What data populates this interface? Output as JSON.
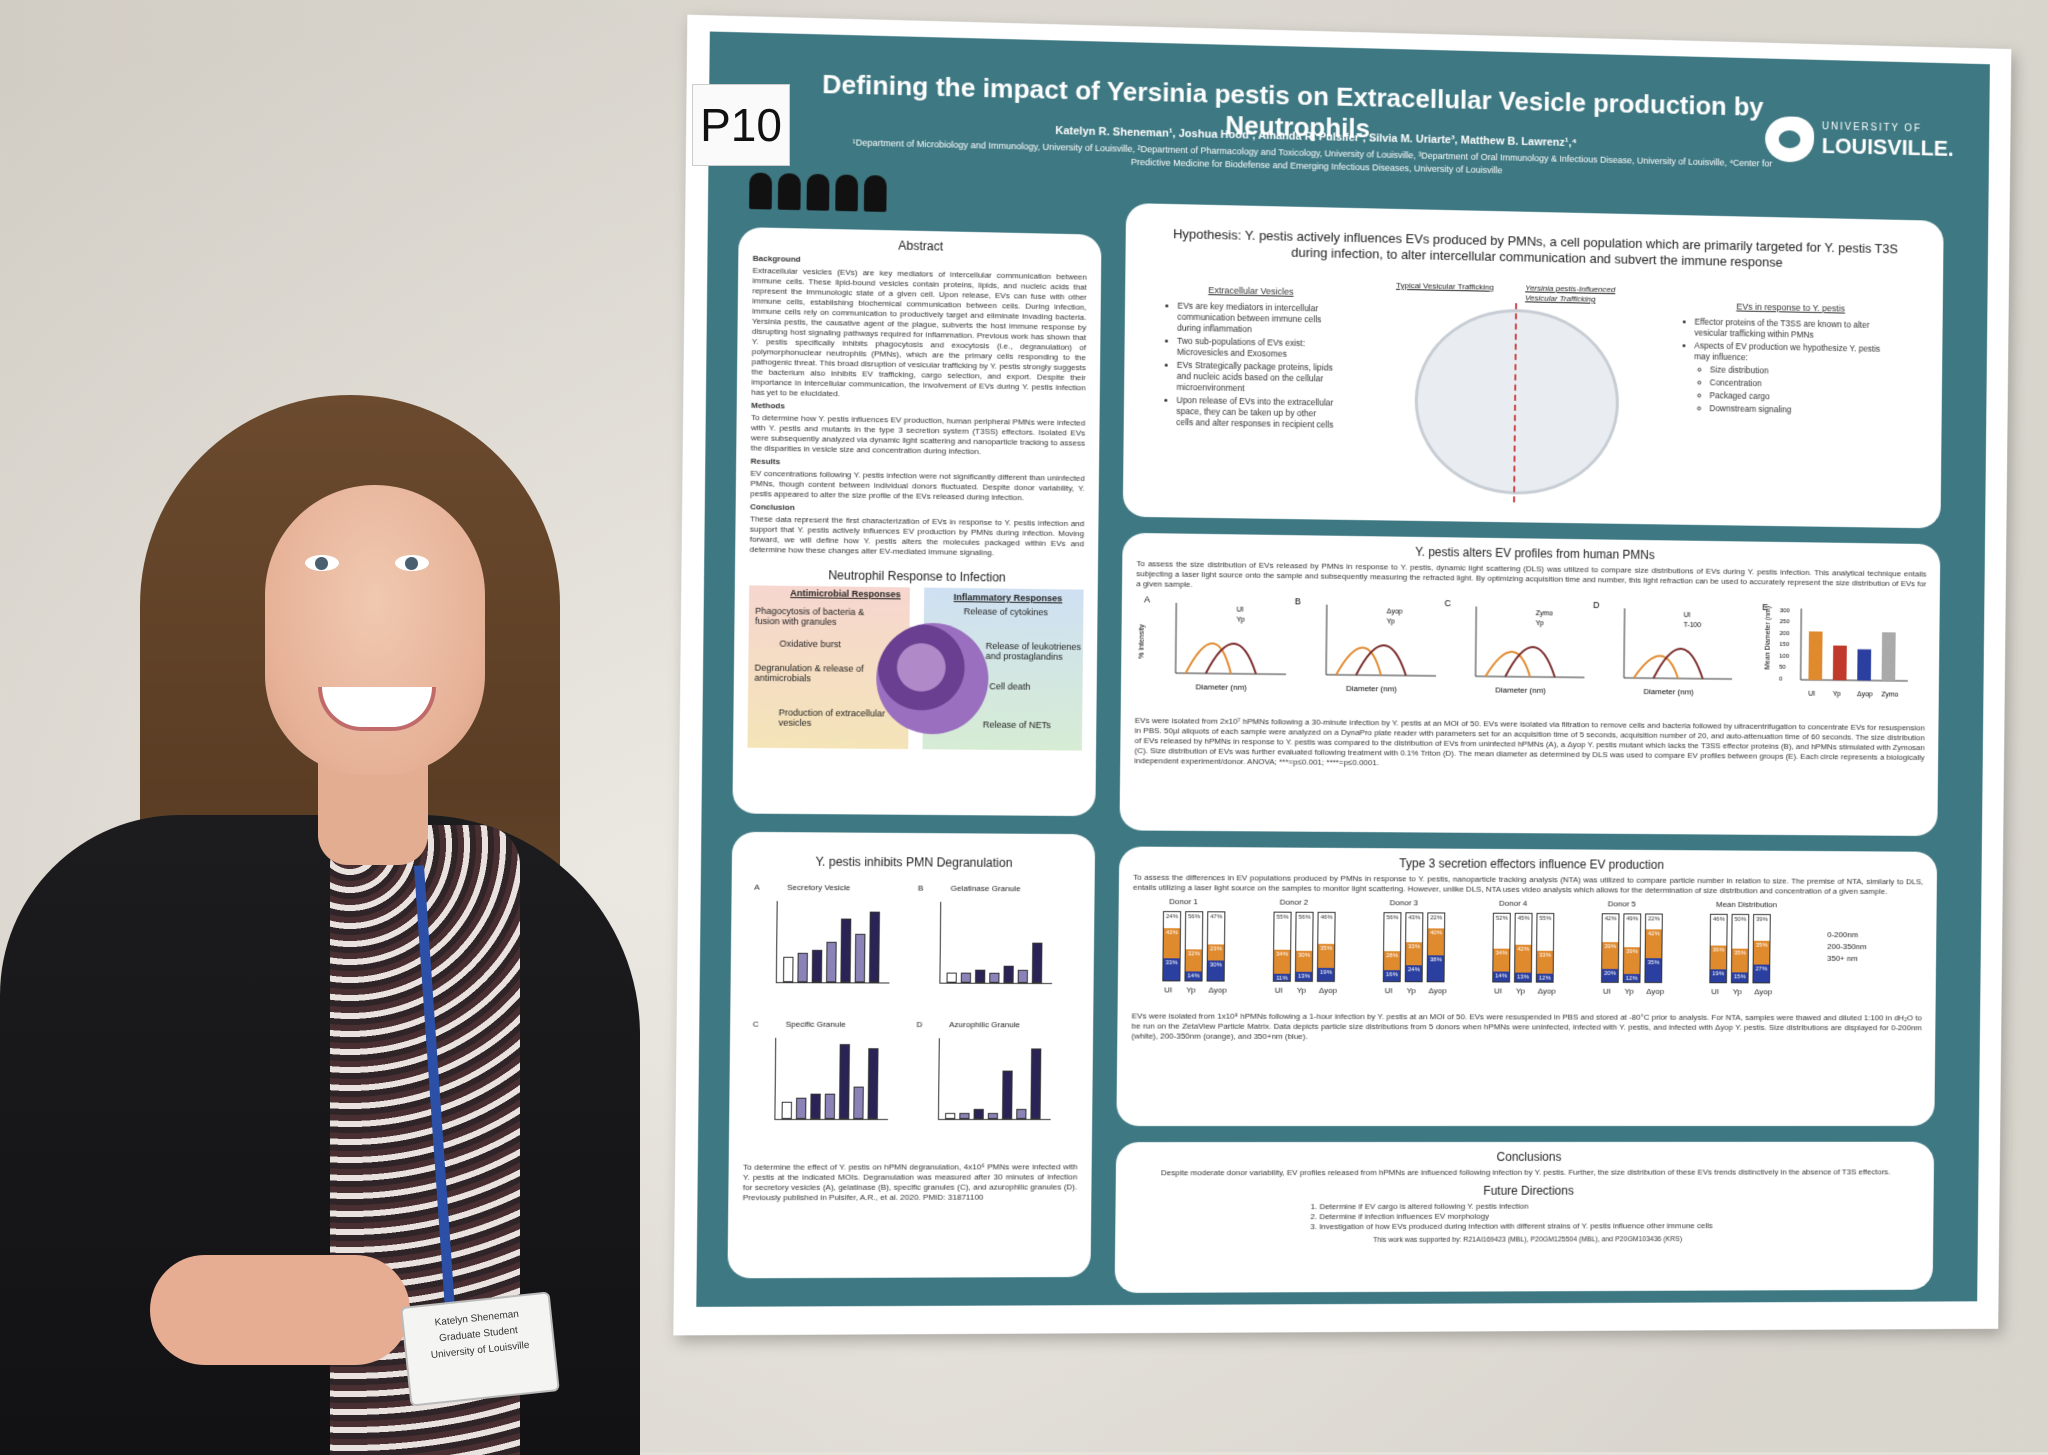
{
  "sign": "P10",
  "poster": {
    "title": "Defining the impact of Yersinia pestis on Extracellular Vesicle production by Neutrophils",
    "authors": "Katelyn R. Sheneman¹, Joshua Hood², Amanda R. Pulsifer¹, Silvia M. Uriarte³, Matthew B. Lawrenz¹,⁴",
    "affiliations": "¹Department of Microbiology and Immunology, University of Louisville, ²Department of Pharmacology and Toxicology, University of Louisville, ³Department of Oral Immunology & Infectious Disease, University of Louisville, ⁴Center for Predictive Medicine for Biodefense and Emerging Infectious Diseases, University of Louisville",
    "logo_top": "UNIVERSITY OF",
    "logo_bottom": "LOUISVILLE.",
    "abstract": {
      "title": "Abstract",
      "background_head": "Background",
      "background": "Extracellular vesicles (EVs) are key mediators of intercellular communication between immune cells. These lipid-bound vesicles contain proteins, lipids, and nucleic acids that represent the immunologic state of a given cell. Upon release, EVs can fuse with other immune cells, establishing biochemical communication between cells. During infection, immune cells rely on communication to productively target and eliminate invading bacteria. Yersinia pestis, the causative agent of the plague, subverts the host immune response by disrupting host signaling pathways required for inflammation. Previous work has shown that Y. pestis specifically inhibits phagocytosis and exocytosis (i.e., degranulation) of polymorphonuclear neutrophils (PMNs), which are the primary cells responding to the pathogenic threat. This broad disruption of vesicular trafficking by Y. pestis strongly suggests the bacterium also inhibits EV trafficking, cargo selection, and export. Despite their importance in intercellular communication, the involvement of EVs during Y. pestis infection has yet to be elucidated.",
      "methods_head": "Methods",
      "methods": "To determine how Y. pestis influences EV production, human peripheral PMNs were infected with Y. pestis and mutants in the type 3 secretion system (T3SS) effectors. Isolated EVs were subsequently analyzed via dynamic light scattering and nanoparticle tracking to assess the disparities in vesicle size and concentration during infection.",
      "results_head": "Results",
      "results": "EV concentrations following Y. pestis infection were not significantly different than uninfected PMNs, though content between individual donors fluctuated. Despite donor variability, Y. pestis appeared to alter the size profile of the EVs released during infection.",
      "conclusion_head": "Conclusion",
      "conclusion": "These data represent the first characterization of EVs in response to Y. pestis infection and support that Y. pestis actively influences EV production by PMNs during infection. Moving forward, we will define how Y. pestis alters the molecules packaged within EVs and determine how these changes alter EV-mediated immune signaling."
    },
    "neutrophil": {
      "title": "Neutrophil Response to Infection",
      "antimicrobial_head": "Antimicrobial Responses",
      "inflammatory_head": "Inflammatory Responses",
      "left_items": [
        "Phagocytosis of bacteria & fusion with granules",
        "Oxidative burst",
        "Degranulation & release of antimicrobials",
        "Production of extracellular vesicles"
      ],
      "right_items": [
        "Release of cytokines",
        "Release of leukotrienes and prostaglandins",
        "Cell death",
        "Release of NETs"
      ]
    },
    "degranulation": {
      "title": "Y. pestis inhibits PMN Degranulation",
      "panels": [
        "Secretory Vesicle",
        "Gelatinase Granule",
        "Specific Granule",
        "Azurophilic Granule"
      ],
      "letters": [
        "A",
        "B",
        "C",
        "D"
      ],
      "text": "To determine the effect of Y. pestis on hPMN degranulation, 4x10⁶ PMNs were infected with Y. pestis at the indicated MOIs. Degranulation was measured after 30 minutes of infection for secretory vesicles (A), gelatinase (B), specific granules (C), and azurophilic granules (D). Previously published in Pulsifer, A.R., et al. 2020. PMID: 31871100"
    },
    "hypothesis": {
      "title": "Hypothesis: Y. pestis actively influences EVs produced by PMNs, a cell population which are primarily targeted for Y. pestis T3S during infection, to alter intercellular communication and subvert the immune response",
      "ev_title": "Extracellular Vesicles",
      "ev_items": [
        "EVs are key mediators in intercellular communication between immune cells during inflammation",
        "Two sub-populations of EVs exist: Microvesicles and Exosomes",
        "EVs Strategically package proteins, lipids and nucleic acids based on the cellular microenvironment",
        "Upon release of EVs into the extracellular space, they can be taken up by other cells and alter responses in recipient cells"
      ],
      "typical": "Typical Vesicular Trafficking",
      "influenced": "Yersinia pestis-Influenced Vesicular Trafficking",
      "right_title": "EVs in response to Y. pestis",
      "right_items": [
        "Effector proteins of the T3SS are known to alter vesicular trafficking within PMNs",
        "Aspects of EV production we hypothesize Y. pestis may influence:"
      ],
      "sub_items": [
        "Size distribution",
        "Concentration",
        "Packaged cargo",
        "Downstream signaling"
      ]
    },
    "dls": {
      "title": "Y. pestis alters EV profiles from human PMNs",
      "intro": "To assess the size distribution of EVs released by PMNs in response to Y. pestis, dynamic light scattering (DLS) was utilized to compare size distributions of EVs during Y. pestis infection. This analytical technique entails subjecting a laser light source onto the sample and subsequently measuring the refracted light. By optimizing acquisition time and number, this light refraction can be used to accurately represent the size distribution of EVs for a given sample.",
      "legends": [
        [
          "UI",
          "Yp"
        ],
        [
          "Δyop",
          "Yp"
        ],
        [
          "Zymo",
          "Yp"
        ],
        [
          "UI",
          "T-100"
        ]
      ],
      "panel_letters": [
        "A",
        "B",
        "C",
        "D",
        "E"
      ],
      "ylabel": "% Intensity",
      "xlabel": "Diameter (nm)",
      "bar_ylabel": "Mean Diameter (nm)",
      "bar_categories": [
        "UI",
        "Yp",
        "Δyop",
        "Zymo"
      ],
      "bar_ticks": [
        "300",
        "250",
        "200",
        "150",
        "100",
        "50",
        "0"
      ],
      "caption": "EVs were isolated from 2x10⁷ hPMNs following a 30-minute infection by Y. pestis at an MOI of 50. EVs were isolated via filtration to remove cells and bacteria followed by ultracentrifugation to concentrate EVs for resuspension in PBS. 50µl aliquots of each sample were analyzed on a DynaPro plate reader with parameters set for an acquisition time of 5 seconds, acquisition number of 20, and auto-attenuation time of 60 seconds. The size distribution of EVs released by hPMNs in response to Y. pestis was compared to the distribution of EVs from uninfected hPMNs (A), a Δyop Y. pestis mutant which lacks the T3SS effector proteins (B), and hPMNs stimulated with Zymosan (C). Size distribution of EVs was further evaluated following treatment with 0.1% Triton (D). The mean diameter as determined by DLS was used to compare EV profiles between groups (E). Each circle represents a biologically independent experiment/donor. ANOVA; ***=p≤0.001; ****=p≤0.0001."
    },
    "nta": {
      "title": "Type 3 secretion effectors influence EV production",
      "intro": "To assess the differences in EV populations produced by PMNs in response to Y. pestis, nanoparticle tracking analysis (NTA) was utilized to compare particle number in relation to size. The premise of NTA, similarly to DLS, entails utilizing a laser light source on the samples to monitor light scattering. However, unlike DLS, NTA uses video analysis which allows for the determination of size distribution and concentration of a given sample.",
      "groups": [
        {
          "name": "Donor 1",
          "bars": [
            [
              24,
              43,
              33
            ],
            [
              56,
              32,
              14
            ],
            [
              47,
              23,
              30
            ]
          ]
        },
        {
          "name": "Donor 2",
          "bars": [
            [
              55,
              34,
              11
            ],
            [
              56,
              30,
              13
            ],
            [
              46,
              35,
              19
            ]
          ]
        },
        {
          "name": "Donor 3",
          "bars": [
            [
              56,
              28,
              16
            ],
            [
              43,
              33,
              24
            ],
            [
              22,
              40,
              38
            ]
          ]
        },
        {
          "name": "Donor 4",
          "bars": [
            [
              52,
              34,
              14
            ],
            [
              45,
              42,
              13
            ],
            [
              55,
              33,
              12
            ]
          ]
        },
        {
          "name": "Donor 5",
          "bars": [
            [
              42,
              39,
              20
            ],
            [
              49,
              39,
              12
            ],
            [
              22,
              42,
              35
            ]
          ]
        },
        {
          "name": "Mean Distribution",
          "bars": [
            [
              46,
              36,
              19
            ],
            [
              50,
              35,
              15
            ],
            [
              39,
              35,
              27
            ]
          ]
        }
      ],
      "bar_labels": [
        "UI",
        "Yp",
        "Δyop"
      ],
      "legend": [
        "0-200nm",
        "200-350nm",
        "350+ nm"
      ],
      "caption": "EVs were isolated from 1x10⁸ hPMNs following a 1-hour infection by Y. pestis at an MOI of 50. EVs were resuspended in PBS and stored at -80°C prior to analysis. For NTA, samples were thawed and diluted 1:100 in dH₂O to be run on the ZetaView Particle Matrix. Data depicts particle size distributions from 5 donors when hPMNs were uninfected, infected with Y. pestis, and infected with Δyop Y. pestis. Size distributions are displayed for 0-200nm (white), 200-350nm (orange), and 350+nm (blue).",
      "colors": {
        "white": "#ffffff",
        "orange": "#e08a2e",
        "blue": "#2a3fa0"
      }
    },
    "conclusions": {
      "title": "Conclusions",
      "text": "Despite moderate donor variability, EV profiles released from hPMNs are influenced following infection by Y. pestis. Further, the size distribution of these EVs trends distinctively in the absence of T3S effectors.",
      "future_title": "Future Directions",
      "future": [
        "1.    Determine if EV cargo is altered following Y. pestis infection",
        "2.    Determine if infection influences EV morphology",
        "3.    Investigation of how EVs produced during infection with different strains of Y. pestis influence other immune cells"
      ],
      "funding": "This work was supported by: R21AI169423 (MBL), P20GM125504 (MBL), and P20GM103436 (KRS)"
    }
  },
  "badge": {
    "name": "Katelyn Sheneman",
    "role": "Graduate Student",
    "org": "University of Louisville"
  },
  "colors": {
    "poster_teal": "#3e7882",
    "panel": "#ffffff"
  }
}
